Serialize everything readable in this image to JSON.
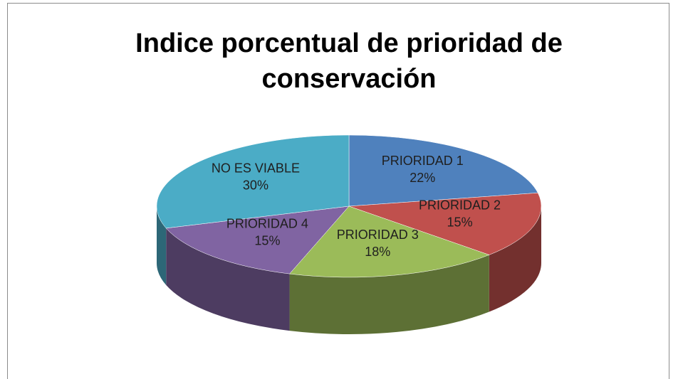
{
  "chart_data": {
    "type": "pie",
    "title": "Indice porcentual de prioridad de conservación",
    "categories": [
      "PRIORIDAD 1",
      "PRIORIDAD 2",
      "PRIORIDAD 3",
      "PRIORIDAD 4",
      "NO ES VIABLE"
    ],
    "values": [
      22,
      15,
      18,
      15,
      30
    ],
    "value_labels": [
      "22%",
      "15%",
      "18%",
      "15%",
      "30%"
    ],
    "colors": [
      "#4f81bd",
      "#c0504d",
      "#9bbb59",
      "#8064a2",
      "#4bacc6"
    ]
  }
}
